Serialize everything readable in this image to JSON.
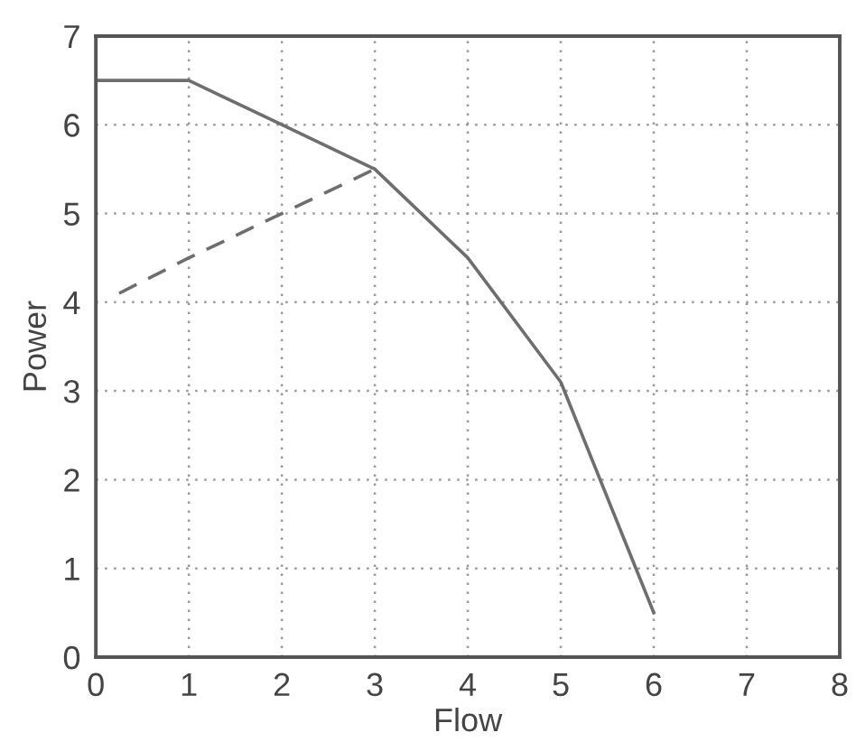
{
  "chart_data": {
    "type": "line",
    "xlabel": "Flow",
    "ylabel": "Power",
    "xlim": [
      0,
      8
    ],
    "ylim": [
      0,
      7
    ],
    "xticks": [
      0,
      1,
      2,
      3,
      4,
      5,
      6,
      7,
      8
    ],
    "yticks": [
      0,
      1,
      2,
      3,
      4,
      5,
      6,
      7
    ],
    "grid": true,
    "series": [
      {
        "color": "#6e6e6e",
        "line_style": "solid",
        "x": [
          0,
          1,
          2,
          3,
          4,
          5,
          6
        ],
        "values": [
          6.5,
          6.5,
          6,
          5.5,
          4.5,
          3.1,
          0.5
        ]
      },
      {
        "color": "#6e6e6e",
        "line_style": "dashed",
        "x": [
          0.25,
          1,
          2,
          3
        ],
        "values": [
          4.1,
          4.5,
          5,
          5.5
        ]
      }
    ]
  }
}
